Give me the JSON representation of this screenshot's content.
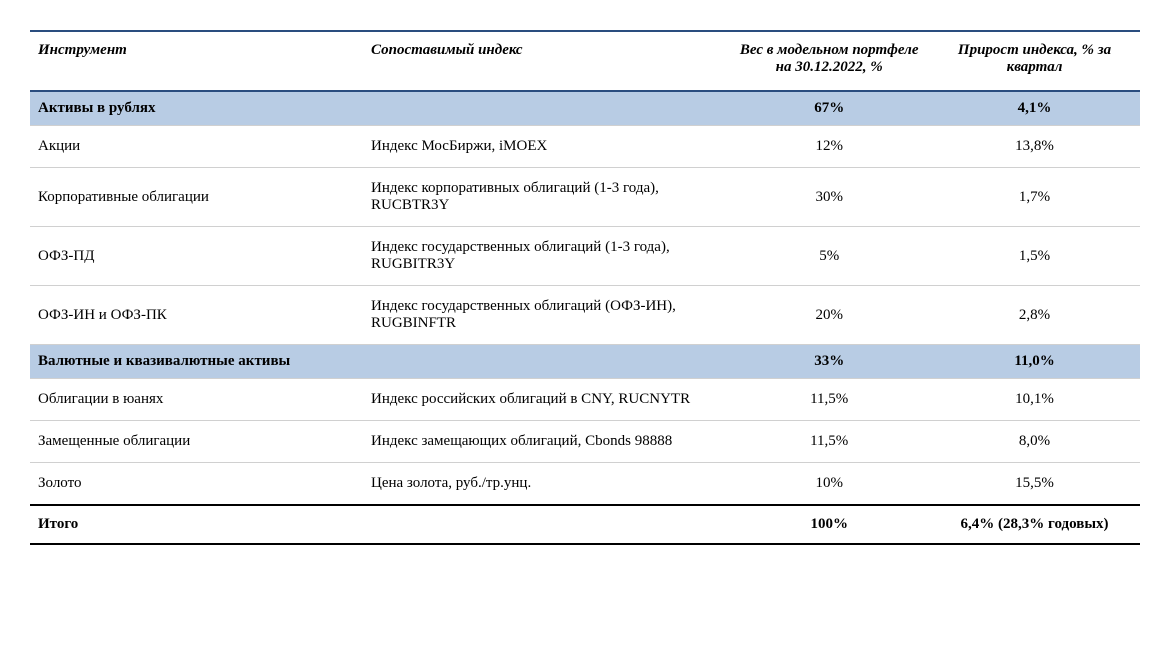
{
  "table": {
    "columns": [
      {
        "label": "Инструмент",
        "align": "left"
      },
      {
        "label": "Сопоставимый индекс",
        "align": "left"
      },
      {
        "label": "Вес в модельном портфеле на 30.12.2022, %",
        "align": "center"
      },
      {
        "label": "Прирост индекса, % за квартал",
        "align": "center"
      }
    ],
    "sections": [
      {
        "title": "Активы в рублях",
        "weight": "67%",
        "growth": "4,1%",
        "rows": [
          {
            "instrument": "Акции",
            "index": "Индекс МосБиржи, iMOEX",
            "weight": "12%",
            "growth": "13,8%"
          },
          {
            "instrument": "Корпоративные облигации",
            "index": "Индекс корпоративных облигаций (1-3 года), RUCBTR3Y",
            "weight": "30%",
            "growth": "1,7%"
          },
          {
            "instrument": "ОФЗ-ПД",
            "index": "Индекс государственных облигаций (1-3 года), RUGBITR3Y",
            "weight": "5%",
            "growth": "1,5%"
          },
          {
            "instrument": "ОФЗ-ИН и ОФЗ-ПК",
            "index": "Индекс государственных облигаций (ОФЗ-ИН), RUGBINFTR",
            "weight": "20%",
            "growth": "2,8%"
          }
        ]
      },
      {
        "title": "Валютные и квазивалютные активы",
        "weight": "33%",
        "growth": "11,0%",
        "rows": [
          {
            "instrument": "Облигации в юанях",
            "index": "Индекс российских облигаций в CNY, RUCNYTR",
            "weight": "11,5%",
            "growth": "10,1%"
          },
          {
            "instrument": "Замещенные облигации",
            "index": "Индекс замещающих облигаций, Cbonds 98888",
            "weight": "11,5%",
            "growth": "8,0%"
          },
          {
            "instrument": "Золото",
            "index": "Цена золота, руб./тр.унц.",
            "weight": "10%",
            "growth": "15,5%"
          }
        ]
      }
    ],
    "total": {
      "label": "Итого",
      "weight": "100%",
      "growth": "6,4% (28,3% годовых)"
    },
    "colors": {
      "section_bg": "#b8cce4",
      "header_border": "#2a4d7f",
      "row_border": "#d0d0d0",
      "total_border": "#000000",
      "text": "#000000",
      "background": "#ffffff"
    },
    "typography": {
      "header_fontsize": 15,
      "body_fontsize": 15,
      "font_family": "Georgia, serif",
      "header_style": "italic bold"
    }
  }
}
